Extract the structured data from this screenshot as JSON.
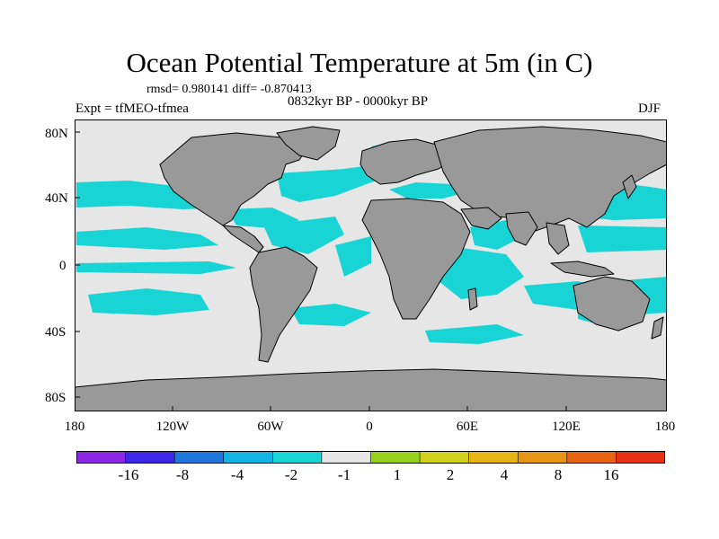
{
  "title": "Ocean Potential Temperature at 5m (in C)",
  "stats_line": "rmsd= 0.980141 diff= -0.870413",
  "period": "0832kyr BP - 0000kyr BP",
  "experiment": "Expt = tfMEO-tfmea",
  "season": "DJF",
  "colors": {
    "land": "#999999",
    "ocean_neutral": "#e6e6e6",
    "cool_anomaly": "#19d4d4",
    "coast_line": "#000000"
  },
  "lat_labels": [
    "80N",
    "40N",
    "0",
    "40S",
    "80S"
  ],
  "lon_labels": [
    "180",
    "120W",
    "60W",
    "0",
    "60E",
    "120E",
    "180"
  ],
  "colorbar": {
    "colors": [
      "#8c28e6",
      "#3c28e6",
      "#1e78dc",
      "#14b4e6",
      "#19d4d4",
      "#e6e6e6",
      "#96d21e",
      "#d2d21e",
      "#e6b414",
      "#e69614",
      "#e66414",
      "#e63214"
    ],
    "labels": [
      "-16",
      "-8",
      "-4",
      "-2",
      "-1",
      "1",
      "2",
      "4",
      "8",
      "16"
    ]
  }
}
